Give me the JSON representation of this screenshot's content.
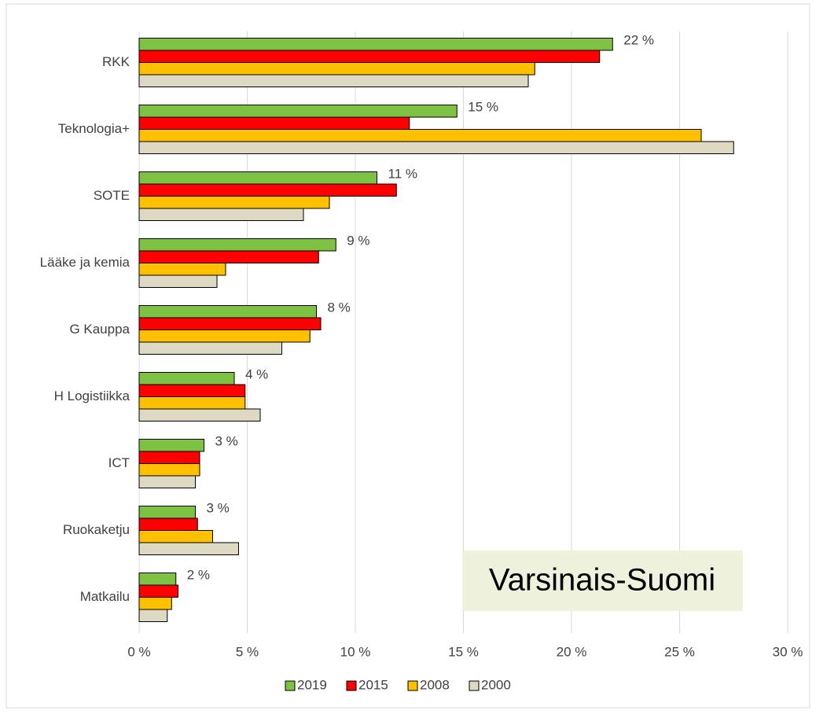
{
  "chart_data": {
    "type": "bar",
    "orientation": "horizontal",
    "categories": [
      "RKK",
      "Teknologia+",
      "SOTE",
      "Lääke ja kemia",
      "G Kauppa",
      "H  Logistiikka",
      "ICT",
      "Ruokaketju",
      "Matkailu"
    ],
    "series": [
      {
        "name": "2019",
        "color": "#7dc242",
        "values": [
          21.9,
          14.7,
          11.0,
          9.1,
          8.2,
          4.4,
          3.0,
          2.6,
          1.7
        ],
        "value_labels": [
          "22 %",
          "15 %",
          "11 %",
          "9 %",
          "8 %",
          "4 %",
          "3 %",
          "3 %",
          "2 %"
        ]
      },
      {
        "name": "2015",
        "color": "#ff0000",
        "values": [
          21.3,
          12.5,
          11.9,
          8.3,
          8.4,
          4.9,
          2.8,
          2.7,
          1.8
        ]
      },
      {
        "name": "2008",
        "color": "#ffc000",
        "values": [
          18.3,
          26.0,
          8.8,
          4.0,
          7.9,
          4.9,
          2.8,
          3.4,
          1.5
        ]
      },
      {
        "name": "2000",
        "color": "#ddd9c3",
        "values": [
          18.0,
          27.5,
          7.6,
          3.6,
          6.6,
          5.6,
          2.6,
          4.6,
          1.3
        ]
      }
    ],
    "xlim": [
      0,
      30
    ],
    "xticks": [
      {
        "value": 0,
        "label": "0 %"
      },
      {
        "value": 5,
        "label": "5 %"
      },
      {
        "value": 10,
        "label": "10 %"
      },
      {
        "value": 15,
        "label": "15 %"
      },
      {
        "value": 20,
        "label": "20 %"
      },
      {
        "value": 25,
        "label": "25 %"
      },
      {
        "value": 30,
        "label": "30 %"
      }
    ],
    "grid": true,
    "annotation": "Varsinais-Suomi",
    "legend": "bottom"
  }
}
